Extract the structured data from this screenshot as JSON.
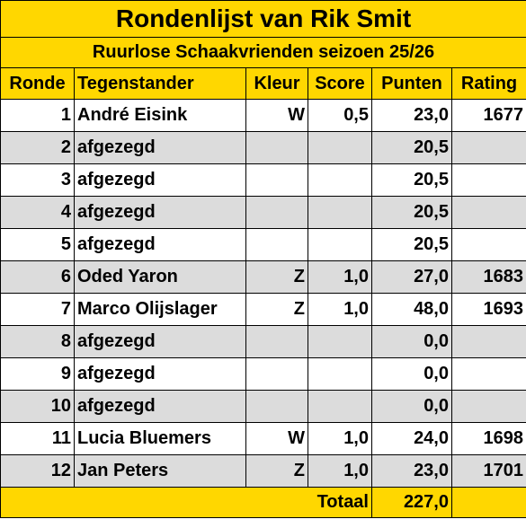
{
  "title": "Rondenlijst van Rik Smit",
  "subtitle": "Ruurlose Schaakvrienden seizoen 25/26",
  "headers": {
    "ronde": "Ronde",
    "tegenstander": "Tegenstander",
    "kleur": "Kleur",
    "score": "Score",
    "punten": "Punten",
    "rating": "Rating"
  },
  "rows": [
    {
      "ronde": "1",
      "tegenstander": "André Eisink",
      "kleur": "W",
      "score": "0,5",
      "punten": "23,0",
      "rating": "1677"
    },
    {
      "ronde": "2",
      "tegenstander": "afgezegd",
      "kleur": "",
      "score": "",
      "punten": "20,5",
      "rating": ""
    },
    {
      "ronde": "3",
      "tegenstander": "afgezegd",
      "kleur": "",
      "score": "",
      "punten": "20,5",
      "rating": ""
    },
    {
      "ronde": "4",
      "tegenstander": "afgezegd",
      "kleur": "",
      "score": "",
      "punten": "20,5",
      "rating": ""
    },
    {
      "ronde": "5",
      "tegenstander": "afgezegd",
      "kleur": "",
      "score": "",
      "punten": "20,5",
      "rating": ""
    },
    {
      "ronde": "6",
      "tegenstander": "Oded Yaron",
      "kleur": "Z",
      "score": "1,0",
      "punten": "27,0",
      "rating": "1683"
    },
    {
      "ronde": "7",
      "tegenstander": "Marco Olijslager",
      "kleur": "Z",
      "score": "1,0",
      "punten": "48,0",
      "rating": "1693"
    },
    {
      "ronde": "8",
      "tegenstander": "afgezegd",
      "kleur": "",
      "score": "",
      "punten": "0,0",
      "rating": ""
    },
    {
      "ronde": "9",
      "tegenstander": "afgezegd",
      "kleur": "",
      "score": "",
      "punten": "0,0",
      "rating": ""
    },
    {
      "ronde": "10",
      "tegenstander": "afgezegd",
      "kleur": "",
      "score": "",
      "punten": "0,0",
      "rating": ""
    },
    {
      "ronde": "11",
      "tegenstander": "Lucia Bluemers",
      "kleur": "W",
      "score": "1,0",
      "punten": "24,0",
      "rating": "1698"
    },
    {
      "ronde": "12",
      "tegenstander": "Jan Peters",
      "kleur": "Z",
      "score": "1,0",
      "punten": "23,0",
      "rating": "1701"
    }
  ],
  "totaal_label": "Totaal",
  "totaal_value": "227,0",
  "colors": {
    "header_bg": "#ffd700",
    "alt_row_bg": "#dcdcdc",
    "row_bg": "#ffffff"
  }
}
